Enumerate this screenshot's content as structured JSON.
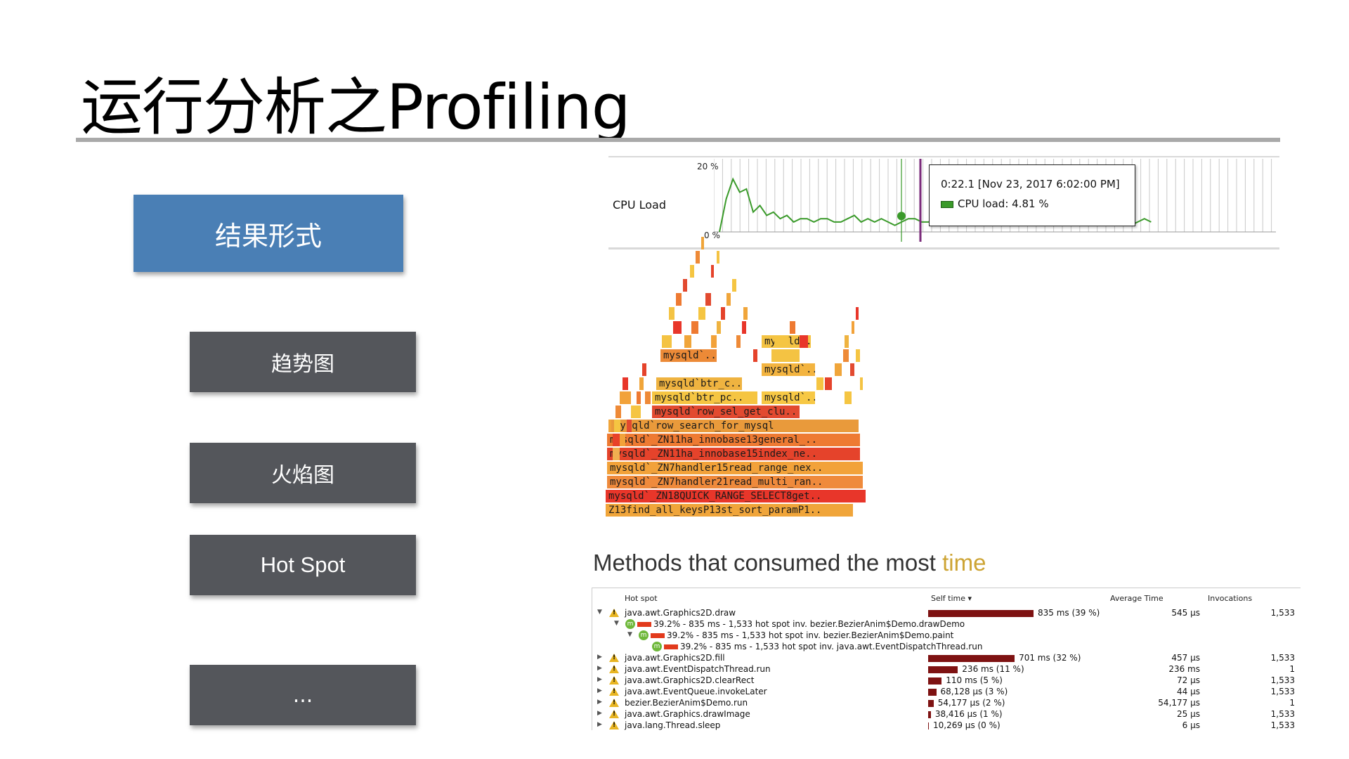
{
  "title": "运行分析之Profiling",
  "left_menu": {
    "primary": "结果形式",
    "items": [
      "趋势图",
      "火焰图",
      "Hot Spot",
      "..."
    ]
  },
  "cpu_chart": {
    "label": "CPU Load",
    "ytick_top": "20 %",
    "ytick_bottom": "0 %",
    "tooltip_time": "0:22.1 [Nov 23, 2017 6:02:00 PM]",
    "tooltip_label": "CPU load:",
    "tooltip_value": "4.81 %",
    "line_color": "#3a9a2a",
    "cursor_color": "#7a2a7a"
  },
  "flame_graph": {
    "frames": [
      {
        "label": "Z13find_all_keysP13st_sort_paramP1..",
        "color": "#f0a53a"
      },
      {
        "label": "mysqld`_ZN18QUICK_RANGE_SELECT8get..",
        "color": "#e8362a"
      },
      {
        "label": "mysqld`_ZN7handler21read_multi_ran..",
        "color": "#ef8a3c"
      },
      {
        "label": "mysqld`_ZN7handler15read_range_nex..",
        "color": "#f2a23a"
      },
      {
        "label": "mysqld`_ZN11ha_innobase15index_ne..",
        "color": "#e5432b"
      },
      {
        "label": "mysqld`_ZN11ha_innobase13general_..",
        "color": "#ee7a32"
      },
      {
        "label": "mysqld`row_search_for_mysql",
        "color": "#e99a3b"
      },
      {
        "label": "mysqld`row_sel_get_clu..",
        "color": "#e24a30"
      },
      {
        "label": "mysqld`btr_pc..",
        "color": "#f5c542"
      },
      {
        "label": "mysqld`..",
        "color": "#f7c845"
      },
      {
        "label": "mysqld`btr_c..",
        "color": "#efb340"
      },
      {
        "label": "mysqld`..",
        "color": "#f3b440"
      },
      {
        "label": "mysqld`..",
        "color": "#ec8a37"
      },
      {
        "label": "mysqld..",
        "color": "#f4c343"
      }
    ]
  },
  "hot_spot": {
    "heading_prefix": "Methods that consumed the most ",
    "heading_accent": "time",
    "columns": [
      "Hot spot",
      "Self time ▾",
      "Average Time",
      "Invocations"
    ],
    "rows": [
      {
        "name": "java.awt.Graphics2D.draw",
        "self": "835 ms (39 %)",
        "avg": "545 μs",
        "inv": "1,533",
        "pct": 39
      },
      {
        "name": "39.2% - 835 ms - 1,533 hot spot inv. bezier.BezierAnim$Demo.drawDemo",
        "sub": 1
      },
      {
        "name": "39.2% - 835 ms - 1,533 hot spot inv. bezier.BezierAnim$Demo.paint",
        "sub": 2
      },
      {
        "name": "39.2% - 835 ms - 1,533 hot spot inv. java.awt.EventDispatchThread.run",
        "sub": 3
      },
      {
        "name": "java.awt.Graphics2D.fill",
        "self": "701 ms (32 %)",
        "avg": "457 μs",
        "inv": "1,533",
        "pct": 32
      },
      {
        "name": "java.awt.EventDispatchThread.run",
        "self": "236 ms (11 %)",
        "avg": "236 ms",
        "inv": "1",
        "pct": 11
      },
      {
        "name": "java.awt.Graphics2D.clearRect",
        "self": "110 ms (5 %)",
        "avg": "72 μs",
        "inv": "1,533",
        "pct": 5
      },
      {
        "name": "java.awt.EventQueue.invokeLater",
        "self": "68,128 μs (3 %)",
        "avg": "44 μs",
        "inv": "1,533",
        "pct": 3
      },
      {
        "name": "bezier.BezierAnim$Demo.run",
        "self": "54,177 μs (2 %)",
        "avg": "54,177 μs",
        "inv": "1",
        "pct": 2
      },
      {
        "name": "java.awt.Graphics.drawImage",
        "self": "38,416 μs (1 %)",
        "avg": "25 μs",
        "inv": "1,533",
        "pct": 1
      },
      {
        "name": "java.lang.Thread.sleep",
        "self": "10,269 μs (0 %)",
        "avg": "6 μs",
        "inv": "1,533",
        "pct": 0
      }
    ]
  }
}
